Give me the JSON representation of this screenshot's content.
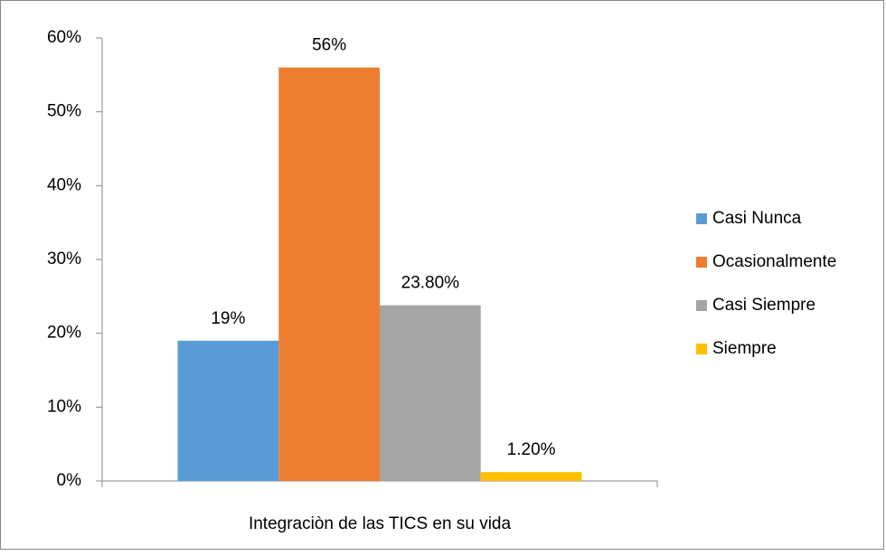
{
  "chart_data": {
    "type": "bar",
    "categories": [
      "Integraciòn de las TICS en su vida"
    ],
    "series": [
      {
        "name": "Casi Nunca",
        "color": "#5b9bd5",
        "values": [
          19
        ],
        "value_labels": [
          "19%"
        ]
      },
      {
        "name": "Ocasionalmente",
        "color": "#ed7d31",
        "values": [
          56
        ],
        "value_labels": [
          "56%"
        ]
      },
      {
        "name": "Casi Siempre",
        "color": "#a5a5a5",
        "values": [
          23.8
        ],
        "value_labels": [
          "23.80%"
        ]
      },
      {
        "name": "Siempre",
        "color": "#ffc000",
        "values": [
          1.2
        ],
        "value_labels": [
          "1.20%"
        ]
      }
    ],
    "ylim": [
      0,
      60
    ],
    "yticks": [
      {
        "value": 0,
        "label": "0%"
      },
      {
        "value": 10,
        "label": "10%"
      },
      {
        "value": 20,
        "label": "20%"
      },
      {
        "value": 30,
        "label": "30%"
      },
      {
        "value": 40,
        "label": "40%"
      },
      {
        "value": 50,
        "label": "50%"
      },
      {
        "value": 60,
        "label": "60%"
      }
    ],
    "grid": false,
    "legend": "right"
  }
}
